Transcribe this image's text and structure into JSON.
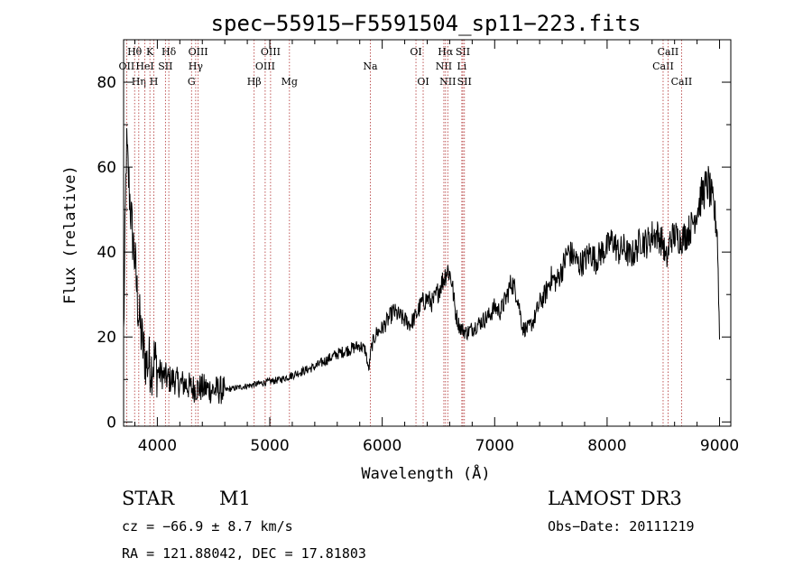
{
  "chart_data": {
    "type": "line",
    "title": "spec−55915−F5591504_sp11−223.fits",
    "xlabel": "Wavelength (Å)",
    "ylabel": "Flux (relative)",
    "xlim": [
      3700,
      9100
    ],
    "ylim": [
      -1,
      90
    ],
    "x_ticks": [
      4000,
      5000,
      6000,
      7000,
      8000,
      9000
    ],
    "y_ticks": [
      0,
      20,
      40,
      60,
      80
    ],
    "series": [
      {
        "name": "spectrum",
        "x": [
          3700,
          3725,
          3750,
          3775,
          3800,
          3825,
          3850,
          3875,
          3900,
          3925,
          3950,
          3975,
          4000,
          4050,
          4100,
          4150,
          4200,
          4250,
          4300,
          4350,
          4400,
          4500,
          4600,
          4700,
          4800,
          4900,
          5000,
          5100,
          5200,
          5300,
          5400,
          5500,
          5600,
          5700,
          5800,
          5850,
          5880,
          5900,
          5920,
          5950,
          6000,
          6050,
          6100,
          6150,
          6200,
          6250,
          6300,
          6350,
          6400,
          6450,
          6500,
          6550,
          6580,
          6600,
          6620,
          6650,
          6680,
          6700,
          6750,
          6800,
          6850,
          6900,
          6950,
          7000,
          7050,
          7100,
          7150,
          7200,
          7250,
          7300,
          7350,
          7400,
          7450,
          7500,
          7550,
          7600,
          7650,
          7700,
          7750,
          7800,
          7850,
          7900,
          7950,
          8000,
          8050,
          8100,
          8150,
          8200,
          8250,
          8300,
          8350,
          8400,
          8450,
          8500,
          8520,
          8540,
          8560,
          8600,
          8650,
          8700,
          8750,
          8800,
          8850,
          8900,
          8950,
          8980,
          9000
        ],
        "values": [
          20,
          65,
          55,
          45,
          38,
          28,
          22,
          17,
          14,
          14,
          13,
          15,
          12,
          11,
          10,
          10,
          9,
          9,
          8,
          8,
          8,
          7.5,
          7.5,
          8,
          8.5,
          9,
          9.5,
          10,
          11,
          12,
          13,
          14.5,
          16,
          17,
          18,
          17,
          12,
          17,
          19,
          21,
          22,
          24,
          26,
          25,
          24,
          23,
          25,
          28,
          29,
          28,
          31,
          34,
          36,
          35,
          33,
          26,
          23,
          22,
          21,
          22,
          23,
          24,
          25,
          27,
          26,
          29,
          33,
          30,
          22,
          22,
          24,
          28,
          30,
          34,
          33,
          36,
          40,
          39,
          37,
          38,
          40,
          38,
          40,
          41,
          43,
          40,
          41,
          39,
          40,
          43,
          42,
          44,
          44,
          42,
          38,
          39,
          43,
          44,
          43,
          44,
          46,
          50,
          54,
          56,
          50,
          45,
          20
        ]
      }
    ],
    "emission_lines": [
      {
        "label": "OⅠⅠ",
        "x": 3727,
        "row": 2
      },
      {
        "label": "Hθ",
        "x": 3798,
        "row": 1
      },
      {
        "label": "Hη",
        "x": 3835,
        "row": 3
      },
      {
        "label": "HeⅠ",
        "x": 3889,
        "row": 2
      },
      {
        "label": "K",
        "x": 3934,
        "row": 1
      },
      {
        "label": "H",
        "x": 3969,
        "row": 3
      },
      {
        "label": "SⅠⅠ",
        "x": 4072,
        "row": 2
      },
      {
        "label": "Hδ",
        "x": 4102,
        "row": 1
      },
      {
        "label": "G",
        "x": 4304,
        "row": 3
      },
      {
        "label": "Hγ",
        "x": 4341,
        "row": 2
      },
      {
        "label": "OⅠⅠⅠ",
        "x": 4363,
        "row": 1
      },
      {
        "label": "Hβ",
        "x": 4861,
        "row": 3
      },
      {
        "label": "OⅠⅠⅠ",
        "x": 4959,
        "row": 2
      },
      {
        "label": "OⅠⅠⅠ",
        "x": 5007,
        "row": 1
      },
      {
        "label": "Mg",
        "x": 5175,
        "row": 3
      },
      {
        "label": "Na",
        "x": 5894,
        "row": 2
      },
      {
        "label": "OⅠ",
        "x": 6300,
        "row": 1
      },
      {
        "label": "OⅠ",
        "x": 6364,
        "row": 3
      },
      {
        "label": "NⅠⅠ",
        "x": 6548,
        "row": 2
      },
      {
        "label": "Hα",
        "x": 6563,
        "row": 1
      },
      {
        "label": "NⅠⅠ",
        "x": 6583,
        "row": 3
      },
      {
        "label": "Li",
        "x": 6708,
        "row": 2
      },
      {
        "label": "SⅠⅠ",
        "x": 6717,
        "row": 1
      },
      {
        "label": "SⅠⅠ",
        "x": 6731,
        "row": 3
      },
      {
        "label": "CaⅠⅠ",
        "x": 8498,
        "row": 2
      },
      {
        "label": "CaⅠⅠ",
        "x": 8542,
        "row": 1
      },
      {
        "label": "CaⅠⅠ",
        "x": 8662,
        "row": 3
      }
    ]
  },
  "info": {
    "object_type": "STAR",
    "subclass": "M1",
    "survey": "LAMOST DR3",
    "cz": "cz = −66.9 ± 8.7 km/s",
    "obs_date": "Obs−Date: 20111219",
    "coords": "RA = 121.88042, DEC =  17.81803"
  },
  "colors": {
    "spectrum": "#000000",
    "line_markers": "#b03030"
  }
}
